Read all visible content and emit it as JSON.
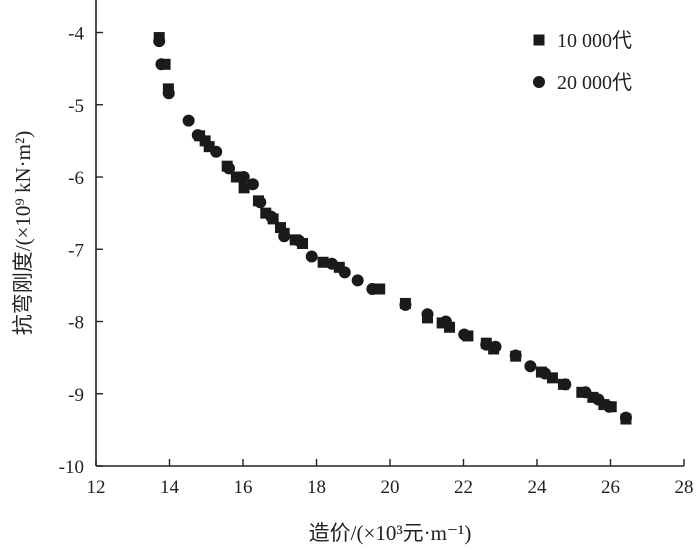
{
  "chart_data": {
    "type": "scatter",
    "title": "",
    "xlabel": "造价/(×10³元·m⁻¹)",
    "ylabel": "抗弯刚度/(×10⁹ kN·m²)",
    "xlim": [
      12,
      28
    ],
    "ylim": [
      -10,
      -3.55
    ],
    "xticks": [
      12,
      14,
      16,
      18,
      20,
      22,
      24,
      26,
      28
    ],
    "yticks": [
      -10,
      -9,
      -8,
      -7,
      -6,
      -5,
      -4
    ],
    "grid": false,
    "legend_position": "top-right",
    "series": [
      {
        "name": "10 000代",
        "marker": "square",
        "color": "#1a1a1a",
        "points": [
          [
            13.72,
            -4.07
          ],
          [
            13.88,
            -4.44
          ],
          [
            13.97,
            -4.78
          ],
          [
            14.82,
            -5.43
          ],
          [
            14.97,
            -5.5
          ],
          [
            15.08,
            -5.58
          ],
          [
            15.57,
            -5.85
          ],
          [
            15.82,
            -6.0
          ],
          [
            16.03,
            -6.15
          ],
          [
            16.42,
            -6.33
          ],
          [
            16.62,
            -6.5
          ],
          [
            16.82,
            -6.58
          ],
          [
            17.02,
            -6.7
          ],
          [
            17.12,
            -6.78
          ],
          [
            17.42,
            -6.87
          ],
          [
            17.62,
            -6.92
          ],
          [
            18.18,
            -7.18
          ],
          [
            18.62,
            -7.25
          ],
          [
            19.58,
            -7.55
          ],
          [
            19.72,
            -7.55
          ],
          [
            20.42,
            -7.75
          ],
          [
            21.02,
            -7.95
          ],
          [
            21.42,
            -8.02
          ],
          [
            21.62,
            -8.08
          ],
          [
            22.12,
            -8.2
          ],
          [
            22.62,
            -8.3
          ],
          [
            22.82,
            -8.38
          ],
          [
            23.42,
            -8.48
          ],
          [
            24.12,
            -8.7
          ],
          [
            24.42,
            -8.78
          ],
          [
            24.72,
            -8.87
          ],
          [
            25.22,
            -8.98
          ],
          [
            25.52,
            -9.05
          ],
          [
            25.82,
            -9.15
          ],
          [
            26.02,
            -9.18
          ],
          [
            26.42,
            -9.35
          ]
        ]
      },
      {
        "name": "20 000代",
        "marker": "circle",
        "color": "#1a1a1a",
        "points": [
          [
            13.72,
            -4.12
          ],
          [
            13.78,
            -4.44
          ],
          [
            13.98,
            -4.84
          ],
          [
            14.52,
            -5.22
          ],
          [
            14.77,
            -5.42
          ],
          [
            15.27,
            -5.65
          ],
          [
            15.62,
            -5.88
          ],
          [
            16.02,
            -6.0
          ],
          [
            16.27,
            -6.1
          ],
          [
            16.47,
            -6.35
          ],
          [
            16.77,
            -6.55
          ],
          [
            17.12,
            -6.82
          ],
          [
            17.52,
            -6.88
          ],
          [
            17.87,
            -7.1
          ],
          [
            18.42,
            -7.2
          ],
          [
            18.77,
            -7.32
          ],
          [
            19.12,
            -7.43
          ],
          [
            19.52,
            -7.55
          ],
          [
            20.42,
            -7.77
          ],
          [
            21.02,
            -7.9
          ],
          [
            21.52,
            -8.0
          ],
          [
            22.02,
            -8.18
          ],
          [
            22.62,
            -8.32
          ],
          [
            22.87,
            -8.35
          ],
          [
            23.42,
            -8.47
          ],
          [
            23.82,
            -8.62
          ],
          [
            24.22,
            -8.72
          ],
          [
            24.77,
            -8.87
          ],
          [
            25.32,
            -8.98
          ],
          [
            25.67,
            -9.08
          ],
          [
            25.97,
            -9.18
          ],
          [
            26.42,
            -9.33
          ]
        ]
      }
    ]
  }
}
